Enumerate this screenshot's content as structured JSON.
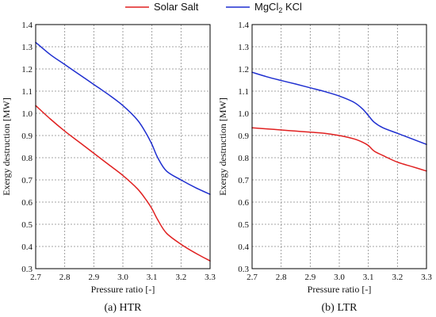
{
  "legend": {
    "items": [
      {
        "name": "Solar Salt",
        "color": "#e02020"
      },
      {
        "name_prefix": "MgCl",
        "name_sub": "2",
        "name_suffix": " KCl",
        "color": "#1f2fd0"
      }
    ]
  },
  "chart_data": [
    {
      "type": "line",
      "caption": "(a) HTR",
      "xlabel": "Pressure ratio [-]",
      "ylabel": "Exergy destruction [MW]",
      "xlim": [
        2.7,
        3.3
      ],
      "ylim": [
        0.3,
        1.4
      ],
      "xticks": [
        "2.7",
        "2.8",
        "2.9",
        "3.0",
        "3.1",
        "3.2",
        "3.3"
      ],
      "yticks": [
        "0.3",
        "0.4",
        "0.5",
        "0.6",
        "0.7",
        "0.8",
        "0.9",
        "1.0",
        "1.1",
        "1.2",
        "1.3",
        "1.4"
      ],
      "grid": true,
      "series": [
        {
          "name": "Solar Salt",
          "color": "#e02020",
          "x": [
            2.7,
            2.75,
            2.8,
            2.85,
            2.9,
            2.95,
            3.0,
            3.05,
            3.08,
            3.1,
            3.12,
            3.15,
            3.2,
            3.25,
            3.3
          ],
          "y": [
            1.035,
            0.975,
            0.92,
            0.87,
            0.82,
            0.77,
            0.72,
            0.66,
            0.61,
            0.57,
            0.52,
            0.46,
            0.41,
            0.37,
            0.335
          ]
        },
        {
          "name": "MgCl2 KCl",
          "color": "#1f2fd0",
          "x": [
            2.7,
            2.75,
            2.8,
            2.85,
            2.9,
            2.95,
            3.0,
            3.05,
            3.08,
            3.1,
            3.12,
            3.15,
            3.2,
            3.25,
            3.3
          ],
          "y": [
            1.32,
            1.265,
            1.22,
            1.175,
            1.13,
            1.085,
            1.035,
            0.97,
            0.91,
            0.86,
            0.8,
            0.74,
            0.7,
            0.665,
            0.635
          ]
        }
      ]
    },
    {
      "type": "line",
      "caption": "(b) LTR",
      "xlabel": "Pressure ratio [-]",
      "ylabel": "Exergy destruction [MW]",
      "xlim": [
        2.7,
        3.3
      ],
      "ylim": [
        0.3,
        1.4
      ],
      "xticks": [
        "2.7",
        "2.8",
        "2.9",
        "3.0",
        "3.1",
        "3.2",
        "3.3"
      ],
      "yticks": [
        "0.3",
        "0.4",
        "0.5",
        "0.6",
        "0.7",
        "0.8",
        "0.9",
        "1.0",
        "1.1",
        "1.2",
        "1.3",
        "1.4"
      ],
      "grid": true,
      "series": [
        {
          "name": "Solar Salt",
          "color": "#e02020",
          "x": [
            2.7,
            2.75,
            2.8,
            2.85,
            2.9,
            2.95,
            3.0,
            3.05,
            3.08,
            3.1,
            3.12,
            3.15,
            3.2,
            3.25,
            3.3
          ],
          "y": [
            0.935,
            0.93,
            0.925,
            0.92,
            0.915,
            0.91,
            0.9,
            0.885,
            0.87,
            0.855,
            0.83,
            0.81,
            0.78,
            0.76,
            0.74
          ]
        },
        {
          "name": "MgCl2 KCl",
          "color": "#1f2fd0",
          "x": [
            2.7,
            2.75,
            2.8,
            2.85,
            2.9,
            2.95,
            3.0,
            3.05,
            3.08,
            3.1,
            3.12,
            3.15,
            3.2,
            3.25,
            3.3
          ],
          "y": [
            1.185,
            1.165,
            1.148,
            1.132,
            1.115,
            1.098,
            1.078,
            1.05,
            1.02,
            0.99,
            0.96,
            0.935,
            0.91,
            0.885,
            0.86
          ]
        }
      ]
    }
  ]
}
